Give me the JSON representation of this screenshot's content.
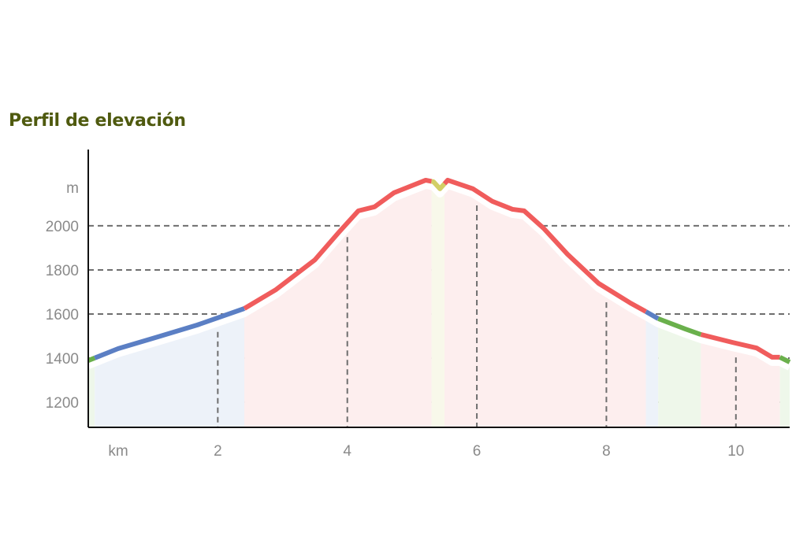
{
  "chart_data": {
    "type": "area",
    "title": "Perfil de elevación",
    "xlabel": "km",
    "ylabel": "m",
    "xlim": [
      0,
      10.83
    ],
    "ylim": [
      1086,
      2346
    ],
    "xticks": [
      2,
      4,
      6,
      8,
      10
    ],
    "yticks": [
      1200,
      1400,
      1600,
      1800,
      2000
    ],
    "grid": true,
    "profile": {
      "km": [
        0,
        0.46,
        1.07,
        1.68,
        2.41,
        2.9,
        3.5,
        3.87,
        4.17,
        4.42,
        4.72,
        5.21,
        5.33,
        5.43,
        5.55,
        5.94,
        6.24,
        6.55,
        6.73,
        7.03,
        7.4,
        7.88,
        8.37,
        8.61,
        8.8,
        9.22,
        9.46,
        9.95,
        10.32,
        10.56,
        10.68,
        10.83
      ],
      "elevation_m": [
        1389,
        1443,
        1496,
        1550,
        1625,
        1711,
        1846,
        1971,
        2068,
        2086,
        2150,
        2207,
        2200,
        2168,
        2207,
        2168,
        2111,
        2075,
        2068,
        1989,
        1871,
        1739,
        1650,
        1611,
        1579,
        1532,
        1507,
        1471,
        1446,
        1404,
        1404,
        1382
      ]
    },
    "segments": [
      {
        "from_km": 0,
        "to_km": 0.1,
        "color": "#6ab04c",
        "band": "#eef7ea"
      },
      {
        "from_km": 0.1,
        "to_km": 2.41,
        "color": "#5b7fc4",
        "band": "#edf2f9"
      },
      {
        "from_km": 2.41,
        "to_km": 5.3,
        "color": "#f05c5c",
        "band": "#fdeeee"
      },
      {
        "from_km": 5.3,
        "to_km": 5.5,
        "color": "#d2cf66",
        "band": "#f8f8ea"
      },
      {
        "from_km": 5.5,
        "to_km": 8.61,
        "color": "#f05c5c",
        "band": "#fdeeee"
      },
      {
        "from_km": 8.61,
        "to_km": 8.8,
        "color": "#5b7fc4",
        "band": "#edf2f9"
      },
      {
        "from_km": 8.8,
        "to_km": 9.46,
        "color": "#6ab04c",
        "band": "#eef7ea"
      },
      {
        "from_km": 9.46,
        "to_km": 10.68,
        "color": "#f05c5c",
        "band": "#fdeeee"
      },
      {
        "from_km": 10.68,
        "to_km": 10.83,
        "color": "#6ab04c",
        "band": "#eef7ea"
      }
    ]
  }
}
